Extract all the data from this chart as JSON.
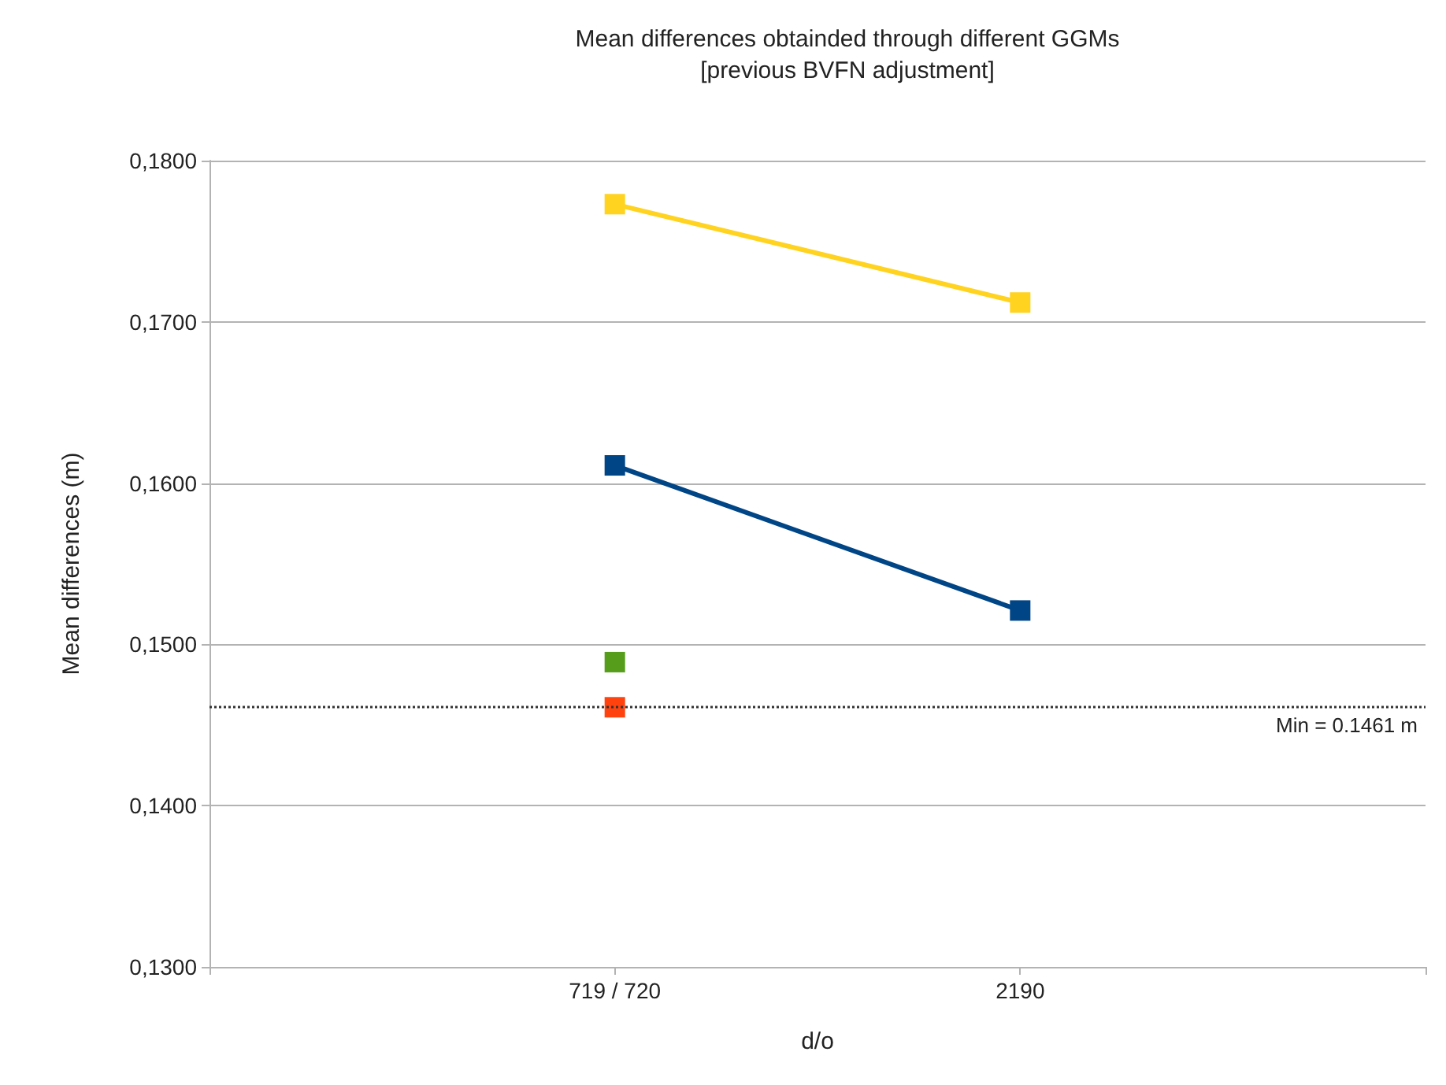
{
  "chart_data": {
    "type": "line",
    "title": "Mean differences obtainded through different GGMs\n[previous BVFN adjustment]",
    "xlabel": "d/o",
    "ylabel": "Mean differences (m)",
    "categories": [
      null,
      "719 / 720",
      "2190",
      null
    ],
    "series": [
      {
        "color": "#ffd320",
        "values": [
          null,
          0.1773,
          0.1712,
          null
        ]
      },
      {
        "color": "#004586",
        "values": [
          null,
          0.1611,
          0.1521,
          null
        ]
      },
      {
        "color": "#579d1c",
        "values": [
          null,
          0.1489,
          null,
          null
        ]
      },
      {
        "color": "#ff420e",
        "values": [
          null,
          0.1461,
          null,
          null
        ]
      }
    ],
    "ylim": [
      0.13,
      0.18
    ],
    "yticks": [
      {
        "value": 0.13,
        "label": "0,1300"
      },
      {
        "value": 0.14,
        "label": "0,1400"
      },
      {
        "value": 0.15,
        "label": "0,1500"
      },
      {
        "value": 0.16,
        "label": "0,1600"
      },
      {
        "value": 0.17,
        "label": "0,1700"
      },
      {
        "value": 0.18,
        "label": "0,1800"
      }
    ],
    "ref_lines": [
      {
        "axis": "y",
        "value": 0.1461,
        "label": "Min = 0.1461 m",
        "color": "#333333",
        "line_style": "dotted"
      }
    ],
    "grid": "y",
    "legend": false,
    "marker": "square",
    "line_style": "solid"
  }
}
